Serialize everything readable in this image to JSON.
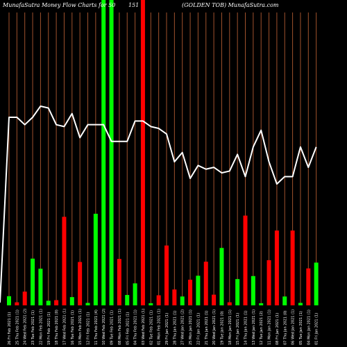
{
  "chart_data": {
    "type": "bar",
    "title_left": "MunafaSutra  Money Flow  Charts for 50",
    "title_code": "151",
    "title_right": "(GOLDEN   TOB) MunafaSutra.com",
    "colors": {
      "up": "#00ff00",
      "down": "#ff0000",
      "line": "#ffffff",
      "grid": "#a0522d",
      "background": "#000000"
    },
    "value_max": 100,
    "line_max": 100,
    "categories": [
      "26 Fri Feb 2021 (1)",
      "25 Thu Feb 2021 (1)",
      "24 Wed Feb 2021 (2)",
      "23 Tue Feb 2021 (1)",
      "22 Mon Feb 2021 (1)",
      "19 Fri Feb 2021 (1)",
      "18 Thu Feb 2021 (0)",
      "17 Wed Feb 2021 (1)",
      "16 Tue Feb 2021 (1)",
      "15 Mon Feb 2021 (1)",
      "12 Fri Feb 2021 (1)",
      "11 Thu Feb 2021 (4)",
      "10 Wed Feb 2021 (2)",
      "09 Tue Feb 2021 (1)",
      "08 Mon Feb 2021 (1)",
      "05 Fri Feb 2021 (1)",
      "04 Thu Feb 2021 (1)",
      "03 Wed Feb 2021 (1)",
      "02 Tue Feb 2021 (1)",
      "01 Mon Feb 2021 (1)",
      "29 Fri Jan 2021 (1)",
      "28 Thu Jan 2021 (1)",
      "27 Wed Jan 2021 (2)",
      "25 Mon Jan 2021 (1)",
      "22 Fri Jan 2021 (1)",
      "21 Thu Jan 2021 (1)",
      "20 Wed Jan 2021 (1)",
      "19 Tue Jan 2021 (0)",
      "18 Mon Jan 2021 (1)",
      "15 Fri Jan 2021 (1)",
      "14 Thu Jan 2021 (1)",
      "13 Wed Jan 2021 (1)",
      "12 Tue Jan 2021 (2)",
      "11 Mon Jan 2021 (1)",
      "08 Fri Jan 2021 (1)",
      "07 Thu Jan 2021 (0)",
      "06 Wed Jan 2021 (1)",
      "05 Tue Jan 2021 (1)",
      "04 Mon Jan 2021 (1)",
      "01 Fri Jan 2021 (1)"
    ],
    "bars": [
      {
        "value": 3,
        "dir": "up"
      },
      {
        "value": 1,
        "dir": "down"
      },
      {
        "value": 4.5,
        "dir": "down"
      },
      {
        "value": 15.3,
        "dir": "up"
      },
      {
        "value": 12,
        "dir": "up"
      },
      {
        "value": 1.5,
        "dir": "up"
      },
      {
        "value": 1.7,
        "dir": "down"
      },
      {
        "value": 29,
        "dir": "down"
      },
      {
        "value": 2.7,
        "dir": "up"
      },
      {
        "value": 14.2,
        "dir": "down"
      },
      {
        "value": 0.8,
        "dir": "up"
      },
      {
        "value": 30,
        "dir": "up"
      },
      {
        "value": 100,
        "dir": "up"
      },
      {
        "value": 100,
        "dir": "up"
      },
      {
        "value": 15.2,
        "dir": "down"
      },
      {
        "value": 3.4,
        "dir": "up"
      },
      {
        "value": 7.2,
        "dir": "up"
      },
      {
        "value": 100,
        "dir": "down"
      },
      {
        "value": 0.7,
        "dir": "up"
      },
      {
        "value": 3.3,
        "dir": "down"
      },
      {
        "value": 19.6,
        "dir": "down"
      },
      {
        "value": 5.2,
        "dir": "down"
      },
      {
        "value": 2.9,
        "dir": "up"
      },
      {
        "value": 8.4,
        "dir": "down"
      },
      {
        "value": 9.7,
        "dir": "up"
      },
      {
        "value": 14.3,
        "dir": "down"
      },
      {
        "value": 3.5,
        "dir": "down"
      },
      {
        "value": 18.8,
        "dir": "up"
      },
      {
        "value": 1,
        "dir": "down"
      },
      {
        "value": 8.6,
        "dir": "up"
      },
      {
        "value": 29.4,
        "dir": "down"
      },
      {
        "value": 9.6,
        "dir": "up"
      },
      {
        "value": 0.7,
        "dir": "up"
      },
      {
        "value": 14.8,
        "dir": "down"
      },
      {
        "value": 24.5,
        "dir": "down"
      },
      {
        "value": 2.9,
        "dir": "up"
      },
      {
        "value": 24.5,
        "dir": "down"
      },
      {
        "value": 0.8,
        "dir": "up"
      },
      {
        "value": 12.1,
        "dir": "down"
      },
      {
        "value": 14,
        "dir": "up"
      }
    ],
    "line": [
      0,
      100,
      100,
      96,
      100,
      106,
      105,
      96,
      95,
      102,
      89,
      96,
      96,
      96,
      87,
      87,
      87,
      98,
      98,
      95,
      94,
      91,
      76,
      81,
      67,
      74,
      72,
      73,
      70,
      71,
      80,
      68,
      84,
      93,
      76,
      64,
      68,
      68,
      84,
      73,
      84
    ]
  }
}
